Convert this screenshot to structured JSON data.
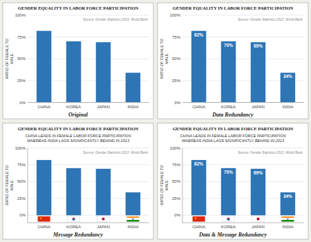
{
  "chart_data": [
    {
      "type": "bar",
      "title": "GENDER EQUALITY IN LABOR FORCE PARTICIPATION",
      "categories": [
        "CHINA",
        "KOREA",
        "JAPAN",
        "INDIA"
      ],
      "values": [
        82,
        70,
        69,
        34
      ],
      "color": "#2e75b6",
      "ylabel": "RATIO OF FEMALE TO\nMALE",
      "ylim": [
        0,
        100
      ],
      "yticks": [
        {
          "value": 0,
          "label": "0%"
        },
        {
          "value": 25,
          "label": "25%"
        },
        {
          "value": 50,
          "label": "50%"
        },
        {
          "value": 75,
          "label": "75%"
        },
        {
          "value": 100,
          "label": "100%"
        }
      ],
      "grid": true,
      "source": "Source: Gender Statistics 2013, World Bank",
      "caption": "Original"
    },
    {
      "type": "bar",
      "title": "GENDER EQUALITY IN LABOR FORCE PARTICIPATION",
      "categories": [
        "CHINA",
        "KOREA",
        "JAPAN",
        "INDIA"
      ],
      "values": [
        82,
        70,
        69,
        34
      ],
      "color": "#2e75b6",
      "data_labels": true,
      "value_labels": [
        "82%",
        "70%",
        "69%",
        "34%"
      ],
      "ylabel": "RATIO OF FEMALE TO\nMALE",
      "ylim": [
        0,
        100
      ],
      "yticks": [
        {
          "value": 0,
          "label": "0%"
        },
        {
          "value": 25,
          "label": "25%"
        },
        {
          "value": 50,
          "label": "50%"
        },
        {
          "value": 75,
          "label": "75%"
        },
        {
          "value": 100,
          "label": "100%"
        }
      ],
      "grid": true,
      "source": "Source: Gender Statistics 2013, World Bank",
      "caption": "Data Redundancy"
    },
    {
      "type": "bar",
      "title": "GENDER EQUALITY IN LABOR FORCE PARTICIPATION",
      "subtitle": "CHINA LEADS IN FEMALE LABOR FORCE PARTICIPATION\nWHEREAS INDIA LAGS SIGNIFICANTLY BEHIND IN 2013",
      "categories": [
        "CHINA",
        "KOREA",
        "JAPAN",
        "INDIA"
      ],
      "values": [
        82,
        70,
        69,
        34
      ],
      "color": "#2e75b6",
      "ylabel": "RATIO OF FEMALE TO\nMALE",
      "ylim": [
        -11,
        100
      ],
      "yticks": [
        {
          "value": 0,
          "label": "0%"
        },
        {
          "value": 25,
          "label": "25%"
        },
        {
          "value": 50,
          "label": "50%"
        },
        {
          "value": 75,
          "label": "75%"
        },
        {
          "value": 100,
          "label": "100%"
        }
      ],
      "grid": true,
      "source": "Source: Gender Statistics 2013, World Bank",
      "caption": "Message Redundancy"
    },
    {
      "type": "bar",
      "title": "GENDER EQUALITY IN LABOR FORCE PARTICIPATION",
      "subtitle": "CHINA LEADS IN FEMALE LABOR FORCE PARTICIPATION\nWHEREAS INDIA LAGS SIGNIFICANTLY BEHIND IN 2013",
      "categories": [
        "CHINA",
        "KOREA",
        "JAPAN",
        "INDIA"
      ],
      "values": [
        82,
        70,
        69,
        34
      ],
      "color": "#2e75b6",
      "data_labels": true,
      "value_labels": [
        "82%",
        "70%",
        "69%",
        "34%"
      ],
      "ylabel": "RATIO OF FEMALE TO\nMALE",
      "ylim": [
        -11,
        100
      ],
      "yticks": [
        {
          "value": 0,
          "label": "0%"
        },
        {
          "value": 25,
          "label": "25%"
        },
        {
          "value": 50,
          "label": "50%"
        },
        {
          "value": 75,
          "label": "75%"
        },
        {
          "value": 100,
          "label": "100%"
        }
      ],
      "grid": true,
      "source": "Source: Gender Statistics 2013, World Bank",
      "caption": "Data & Message Redundancy"
    }
  ]
}
